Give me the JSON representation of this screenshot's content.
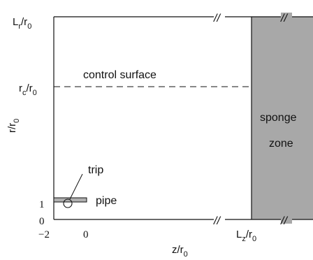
{
  "labels": {
    "y_axis_main": "r/r",
    "y_axis_sub": "0",
    "y_tick_top_main": "L",
    "y_tick_top_mid": "r",
    "y_tick_top_slash": "/r",
    "y_tick_top_sub": "0",
    "y_tick_rc_main": "r",
    "y_tick_rc_mid": "c",
    "y_tick_rc_slash": "/r",
    "y_tick_rc_sub": "0",
    "y_tick_one": "1",
    "y_tick_zero": "0",
    "x_tick_neg2": "−2",
    "x_tick_zero": "0",
    "x_tick_lz_main": "L",
    "x_tick_lz_mid": "z",
    "x_tick_lz_slash": "/r",
    "x_tick_lz_sub": "0",
    "x_axis_main": "z/r",
    "x_axis_sub": "0",
    "control_surface": "control surface",
    "sponge_line1": "sponge",
    "sponge_line2": "zone",
    "trip": "trip",
    "pipe": "pipe",
    "break_mark": "//"
  },
  "colors": {
    "sponge_fill": "#a8a8a8",
    "pipe_fill": "#b0b0b0",
    "line": "#111111"
  }
}
